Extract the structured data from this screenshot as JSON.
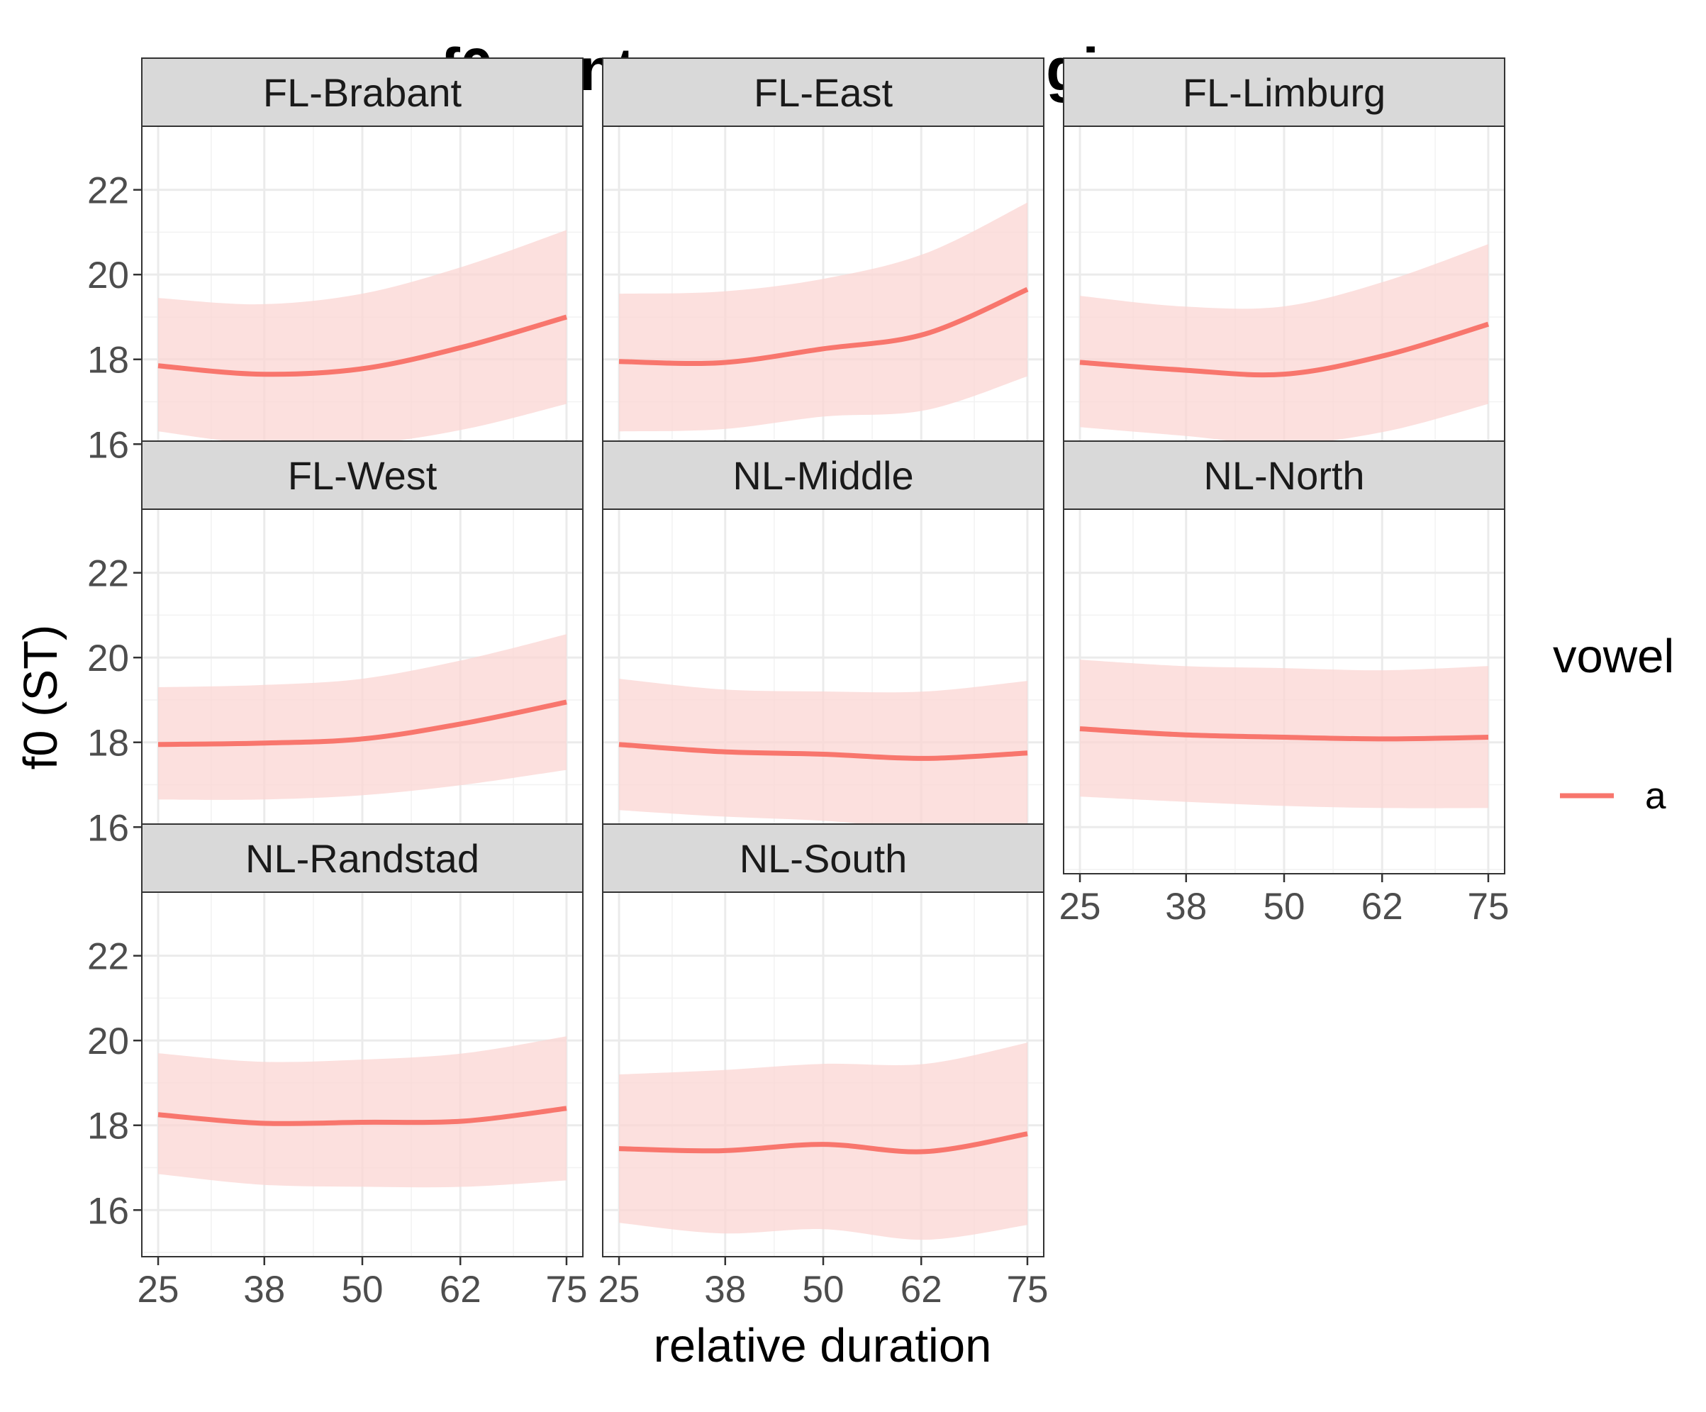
{
  "chart_data": {
    "type": "line",
    "title": "f0 contours across regions",
    "xlabel": "relative duration",
    "ylabel": "f0 (ST)",
    "xlim": [
      23,
      77
    ],
    "ylim": [
      14.9,
      23.5
    ],
    "x_ticks": [
      25,
      38,
      50,
      62,
      75
    ],
    "y_ticks": [
      16,
      18,
      20,
      22
    ],
    "grid": true,
    "legend": {
      "title": "vowel",
      "position": "right",
      "entries": [
        {
          "label": "a",
          "color": "#F8766D"
        }
      ]
    },
    "series_color": "#F8766D",
    "ribbon_color": "#FBD5D3",
    "x": [
      25,
      37.5,
      50,
      62.5,
      75
    ],
    "facets": [
      {
        "name": "FL-Brabant",
        "mean": [
          17.85,
          17.65,
          17.78,
          18.3,
          19.0
        ],
        "lower": [
          16.3,
          16.0,
          16.0,
          16.35,
          16.95
        ],
        "upper": [
          19.45,
          19.3,
          19.55,
          20.2,
          21.05
        ]
      },
      {
        "name": "FL-East",
        "mean": [
          17.95,
          17.92,
          18.25,
          18.6,
          19.65
        ],
        "lower": [
          16.3,
          16.35,
          16.65,
          16.8,
          17.6
        ],
        "upper": [
          19.55,
          19.6,
          19.9,
          20.5,
          21.7
        ]
      },
      {
        "name": "FL-Limburg",
        "mean": [
          17.93,
          17.75,
          17.65,
          18.1,
          18.83
        ],
        "lower": [
          16.4,
          16.2,
          16.0,
          16.3,
          16.95
        ],
        "upper": [
          19.5,
          19.25,
          19.25,
          19.85,
          20.72
        ]
      },
      {
        "name": "FL-West",
        "mean": [
          17.95,
          17.98,
          18.08,
          18.45,
          18.95
        ],
        "lower": [
          16.65,
          16.65,
          16.75,
          17.0,
          17.35
        ],
        "upper": [
          19.3,
          19.35,
          19.5,
          19.95,
          20.55
        ]
      },
      {
        "name": "NL-Middle",
        "mean": [
          17.95,
          17.78,
          17.72,
          17.62,
          17.75
        ],
        "lower": [
          16.4,
          16.25,
          16.15,
          15.97,
          16.05
        ],
        "upper": [
          19.5,
          19.25,
          19.2,
          19.2,
          19.45
        ]
      },
      {
        "name": "NL-North",
        "mean": [
          18.32,
          18.18,
          18.12,
          18.08,
          18.12
        ],
        "lower": [
          16.72,
          16.6,
          16.5,
          16.45,
          16.45
        ],
        "upper": [
          19.95,
          19.8,
          19.75,
          19.7,
          19.8
        ]
      },
      {
        "name": "NL-Randstad",
        "mean": [
          18.25,
          18.05,
          18.07,
          18.1,
          18.4
        ],
        "lower": [
          16.85,
          16.6,
          16.55,
          16.55,
          16.7
        ],
        "upper": [
          19.7,
          19.5,
          19.55,
          19.7,
          20.1
        ]
      },
      {
        "name": "NL-South",
        "mean": [
          17.45,
          17.4,
          17.55,
          17.38,
          17.8
        ],
        "lower": [
          15.7,
          15.45,
          15.55,
          15.3,
          15.65
        ],
        "upper": [
          19.2,
          19.3,
          19.45,
          19.45,
          19.95
        ]
      }
    ]
  }
}
